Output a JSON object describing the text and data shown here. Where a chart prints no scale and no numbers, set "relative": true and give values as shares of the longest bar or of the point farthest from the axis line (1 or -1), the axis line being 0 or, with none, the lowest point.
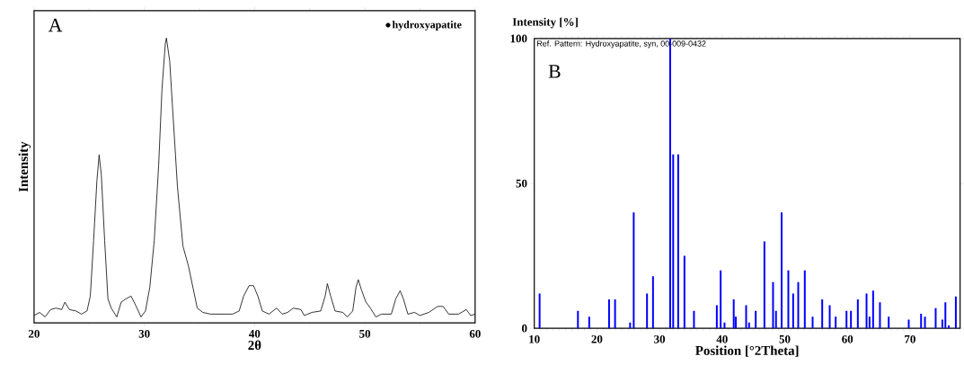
{
  "chart_data": [
    {
      "type": "line",
      "relative": true,
      "xlim": [
        20,
        60
      ],
      "xticks": [
        20,
        30,
        40,
        50,
        60
      ],
      "xlabel": "2θ",
      "ylabel": "Intensity",
      "annotations": [
        "A"
      ],
      "legend": "top right",
      "series": [
        {
          "name": "hydroxyapatite",
          "color": "#000000",
          "x": [
            20.0,
            20.5,
            21.0,
            21.5,
            22.0,
            22.5,
            22.8,
            23.2,
            23.8,
            24.3,
            24.8,
            25.1,
            25.4,
            25.7,
            25.9,
            26.1,
            26.4,
            26.7,
            27.0,
            27.5,
            27.9,
            28.3,
            28.8,
            29.2,
            29.7,
            30.1,
            30.5,
            30.9,
            31.3,
            31.6,
            31.9,
            32.0,
            32.3,
            32.6,
            33.0,
            33.5,
            34.0,
            34.4,
            34.8,
            35.3,
            36.0,
            37.0,
            38.0,
            38.6,
            39.0,
            39.5,
            39.9,
            40.3,
            40.7,
            41.3,
            42.0,
            42.5,
            43.0,
            43.5,
            44.2,
            44.5,
            45.2,
            46.0,
            46.4,
            46.6,
            46.9,
            47.3,
            48.0,
            48.4,
            48.9,
            49.2,
            49.4,
            49.7,
            50.1,
            50.5,
            51.0,
            51.5,
            52.4,
            52.8,
            53.2,
            53.5,
            53.9,
            54.5,
            55.0,
            55.8,
            56.6,
            57.1,
            57.6,
            58.5,
            59.2,
            59.6,
            60.0
          ],
          "values": [
            0.026,
            0.037,
            0.021,
            0.047,
            0.052,
            0.047,
            0.073,
            0.047,
            0.042,
            0.031,
            0.042,
            0.094,
            0.29,
            0.5,
            0.59,
            0.52,
            0.29,
            0.084,
            0.052,
            0.021,
            0.073,
            0.084,
            0.094,
            0.063,
            0.021,
            0.042,
            0.126,
            0.29,
            0.555,
            0.82,
            0.98,
            1.0,
            0.92,
            0.73,
            0.48,
            0.27,
            0.2,
            0.126,
            0.052,
            0.037,
            0.031,
            0.031,
            0.031,
            0.042,
            0.094,
            0.131,
            0.131,
            0.094,
            0.042,
            0.031,
            0.052,
            0.031,
            0.037,
            0.052,
            0.047,
            0.026,
            0.037,
            0.042,
            0.094,
            0.138,
            0.094,
            0.042,
            0.037,
            0.021,
            0.042,
            0.126,
            0.152,
            0.115,
            0.073,
            0.052,
            0.021,
            0.031,
            0.031,
            0.084,
            0.113,
            0.084,
            0.031,
            0.037,
            0.026,
            0.037,
            0.058,
            0.058,
            0.031,
            0.031,
            0.047,
            0.026,
            0.031
          ]
        }
      ]
    },
    {
      "type": "bar",
      "xlim": [
        10,
        78
      ],
      "xticks": [
        10,
        20,
        30,
        40,
        50,
        60,
        70
      ],
      "ylim": [
        0,
        100
      ],
      "yticks": [
        0,
        50,
        100
      ],
      "xlabel": "Position [°2Theta]",
      "ylabel": "Intensity [%]",
      "annotations": [
        "Ref. Pattern: Hydroxyapatite, syn, 00-009-0432",
        "B"
      ],
      "color": "#0000ff",
      "x": [
        10.85,
        16.97,
        18.77,
        21.94,
        22.9,
        25.3,
        25.88,
        28.0,
        28.96,
        31.7,
        32.18,
        32.98,
        33.98,
        35.5,
        39.15,
        39.76,
        40.38,
        41.85,
        42.18,
        43.83,
        44.3,
        45.36,
        46.75,
        48.13,
        48.6,
        49.5,
        50.57,
        51.34,
        52.15,
        53.2,
        54.45,
        55.98,
        57.18,
        58.13,
        59.86,
        60.57,
        61.67,
        63.06,
        63.54,
        64.11,
        65.2,
        66.6,
        69.8,
        71.77,
        72.39,
        74.1,
        75.17,
        75.65,
        76.2,
        77.32
      ],
      "values": [
        12,
        6,
        4,
        10,
        10,
        2,
        40,
        12,
        18,
        100,
        60,
        60,
        25,
        6,
        8,
        20,
        2,
        10,
        4,
        8,
        2,
        6,
        30,
        16,
        6,
        40,
        20,
        12,
        16,
        20,
        4,
        10,
        8,
        4,
        6,
        6,
        10,
        12,
        4,
        13,
        9,
        4,
        3,
        5,
        4,
        7,
        3,
        9,
        1,
        11
      ]
    }
  ]
}
